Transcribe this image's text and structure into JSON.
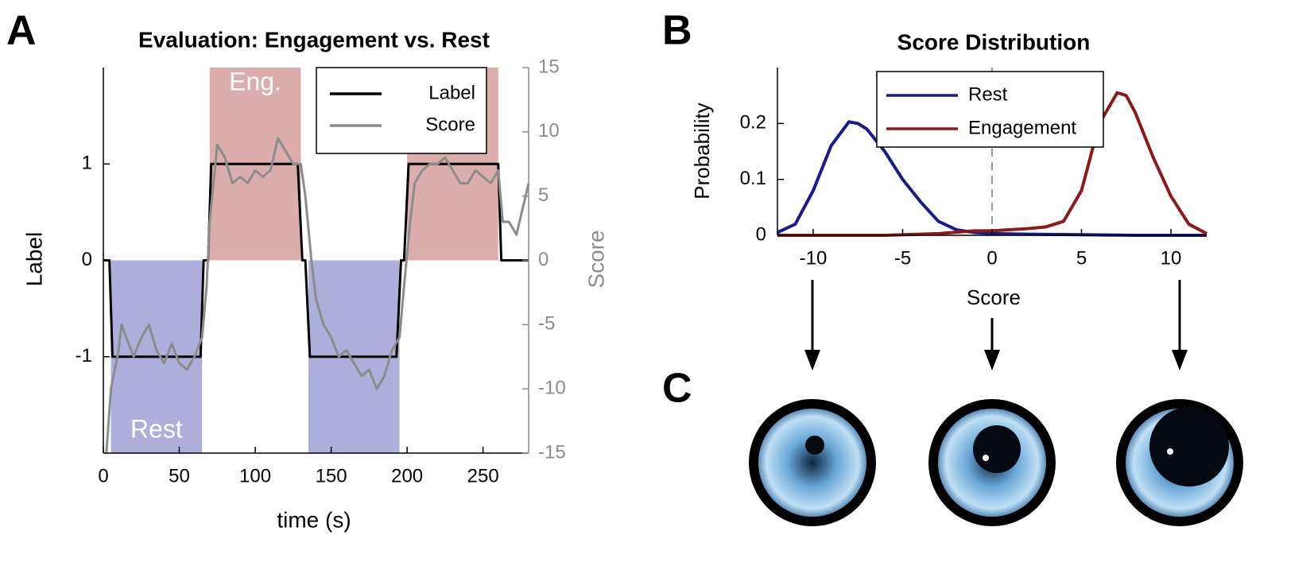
{
  "panel_labels": [
    "A",
    "B",
    "C"
  ],
  "chart_data": [
    {
      "type": "line",
      "title": "Evaluation: Engagement vs. Rest",
      "xlabel": "time (s)",
      "ylabel": "Label",
      "y2label": "Score",
      "xlim": [
        0,
        280
      ],
      "xticks": [
        0,
        50,
        100,
        150,
        200,
        250
      ],
      "ylim": [
        -2,
        2
      ],
      "yticks": [
        -1,
        0,
        1
      ],
      "y2lim": [
        -15,
        15
      ],
      "y2ticks": [
        -15,
        -10,
        -5,
        0,
        5,
        10,
        15
      ],
      "y2color": "#8c8c8c",
      "legend": "upper right",
      "regions": [
        {
          "name": "Rest",
          "color": "#aeaedb",
          "yspan": [
            -2,
            0
          ],
          "spans": [
            [
              5,
              65
            ],
            [
              135,
              195
            ]
          ]
        },
        {
          "name": "Eng.",
          "color": "#dbadad",
          "yspan": [
            0,
            2
          ],
          "spans": [
            [
              70,
              130
            ],
            [
              200,
              260
            ]
          ]
        }
      ],
      "series": [
        {
          "name": "Label",
          "color": "#000000",
          "x": [
            0,
            4,
            6,
            64,
            66,
            69,
            71,
            128,
            131,
            133,
            136,
            193,
            196,
            198,
            201,
            260,
            262,
            280
          ],
          "values": [
            0,
            0,
            -1,
            -1,
            0,
            0,
            1,
            1,
            0,
            0,
            -1,
            -1,
            0,
            0,
            1,
            1,
            0,
            0
          ]
        },
        {
          "name": "Score",
          "color": "#8c8c8c",
          "axis": "y2",
          "x": [
            2,
            5,
            10,
            12,
            15,
            20,
            25,
            30,
            35,
            40,
            45,
            50,
            55,
            60,
            65,
            68,
            70,
            75,
            80,
            85,
            90,
            95,
            100,
            105,
            110,
            115,
            120,
            125,
            130,
            133,
            137,
            140,
            145,
            150,
            155,
            160,
            165,
            170,
            175,
            180,
            185,
            190,
            195,
            198,
            202,
            205,
            210,
            215,
            220,
            225,
            230,
            235,
            240,
            245,
            250,
            255,
            260,
            263,
            267,
            272,
            276,
            280
          ],
          "values": [
            -15,
            -10,
            -7,
            -5,
            -6,
            -7.5,
            -6,
            -5,
            -7,
            -8,
            -6.5,
            -8,
            -8.5,
            -7.5,
            -6,
            -2,
            3,
            9,
            8,
            6,
            6.5,
            6,
            7,
            6.5,
            7,
            9.5,
            8.5,
            7.5,
            7.5,
            5,
            0,
            -3,
            -5,
            -6,
            -7.5,
            -7,
            -8,
            -9,
            -8.5,
            -10,
            -9,
            -7,
            -6,
            -2,
            3,
            6,
            7,
            7.5,
            7.5,
            8,
            7,
            6,
            6,
            7,
            6.5,
            6,
            7,
            3,
            3,
            2,
            4,
            6
          ]
        }
      ]
    },
    {
      "type": "line",
      "title": "Score Distribution",
      "xlabel": "Score",
      "ylabel": "Probability",
      "xlim": [
        -12,
        12
      ],
      "xticks": [
        -10,
        -5,
        0,
        5,
        10
      ],
      "ylim": [
        0,
        0.3
      ],
      "yticks": [
        0,
        0.1,
        0.2
      ],
      "reference_line_x": 0,
      "legend": "upper center",
      "series": [
        {
          "name": "Rest",
          "color": "#1a1a8c",
          "x": [
            -12,
            -11,
            -10,
            -9,
            -8,
            -7.5,
            -7,
            -6,
            -5,
            -4,
            -3,
            -2,
            -1,
            0,
            2,
            5,
            8,
            12
          ],
          "values": [
            0.005,
            0.02,
            0.08,
            0.16,
            0.203,
            0.2,
            0.19,
            0.15,
            0.1,
            0.06,
            0.025,
            0.01,
            0.005,
            0.003,
            0.002,
            0.001,
            0,
            0
          ]
        },
        {
          "name": "Engagement",
          "color": "#8c1a1a",
          "x": [
            -12,
            -6,
            -3,
            -1,
            0,
            2,
            3,
            4,
            5,
            6,
            7,
            7.5,
            8,
            9,
            10,
            11,
            12
          ],
          "values": [
            0,
            0,
            0.003,
            0.008,
            0.008,
            0.012,
            0.015,
            0.025,
            0.08,
            0.2,
            0.255,
            0.25,
            0.22,
            0.14,
            0.07,
            0.02,
            0.003
          ]
        }
      ]
    }
  ]
}
